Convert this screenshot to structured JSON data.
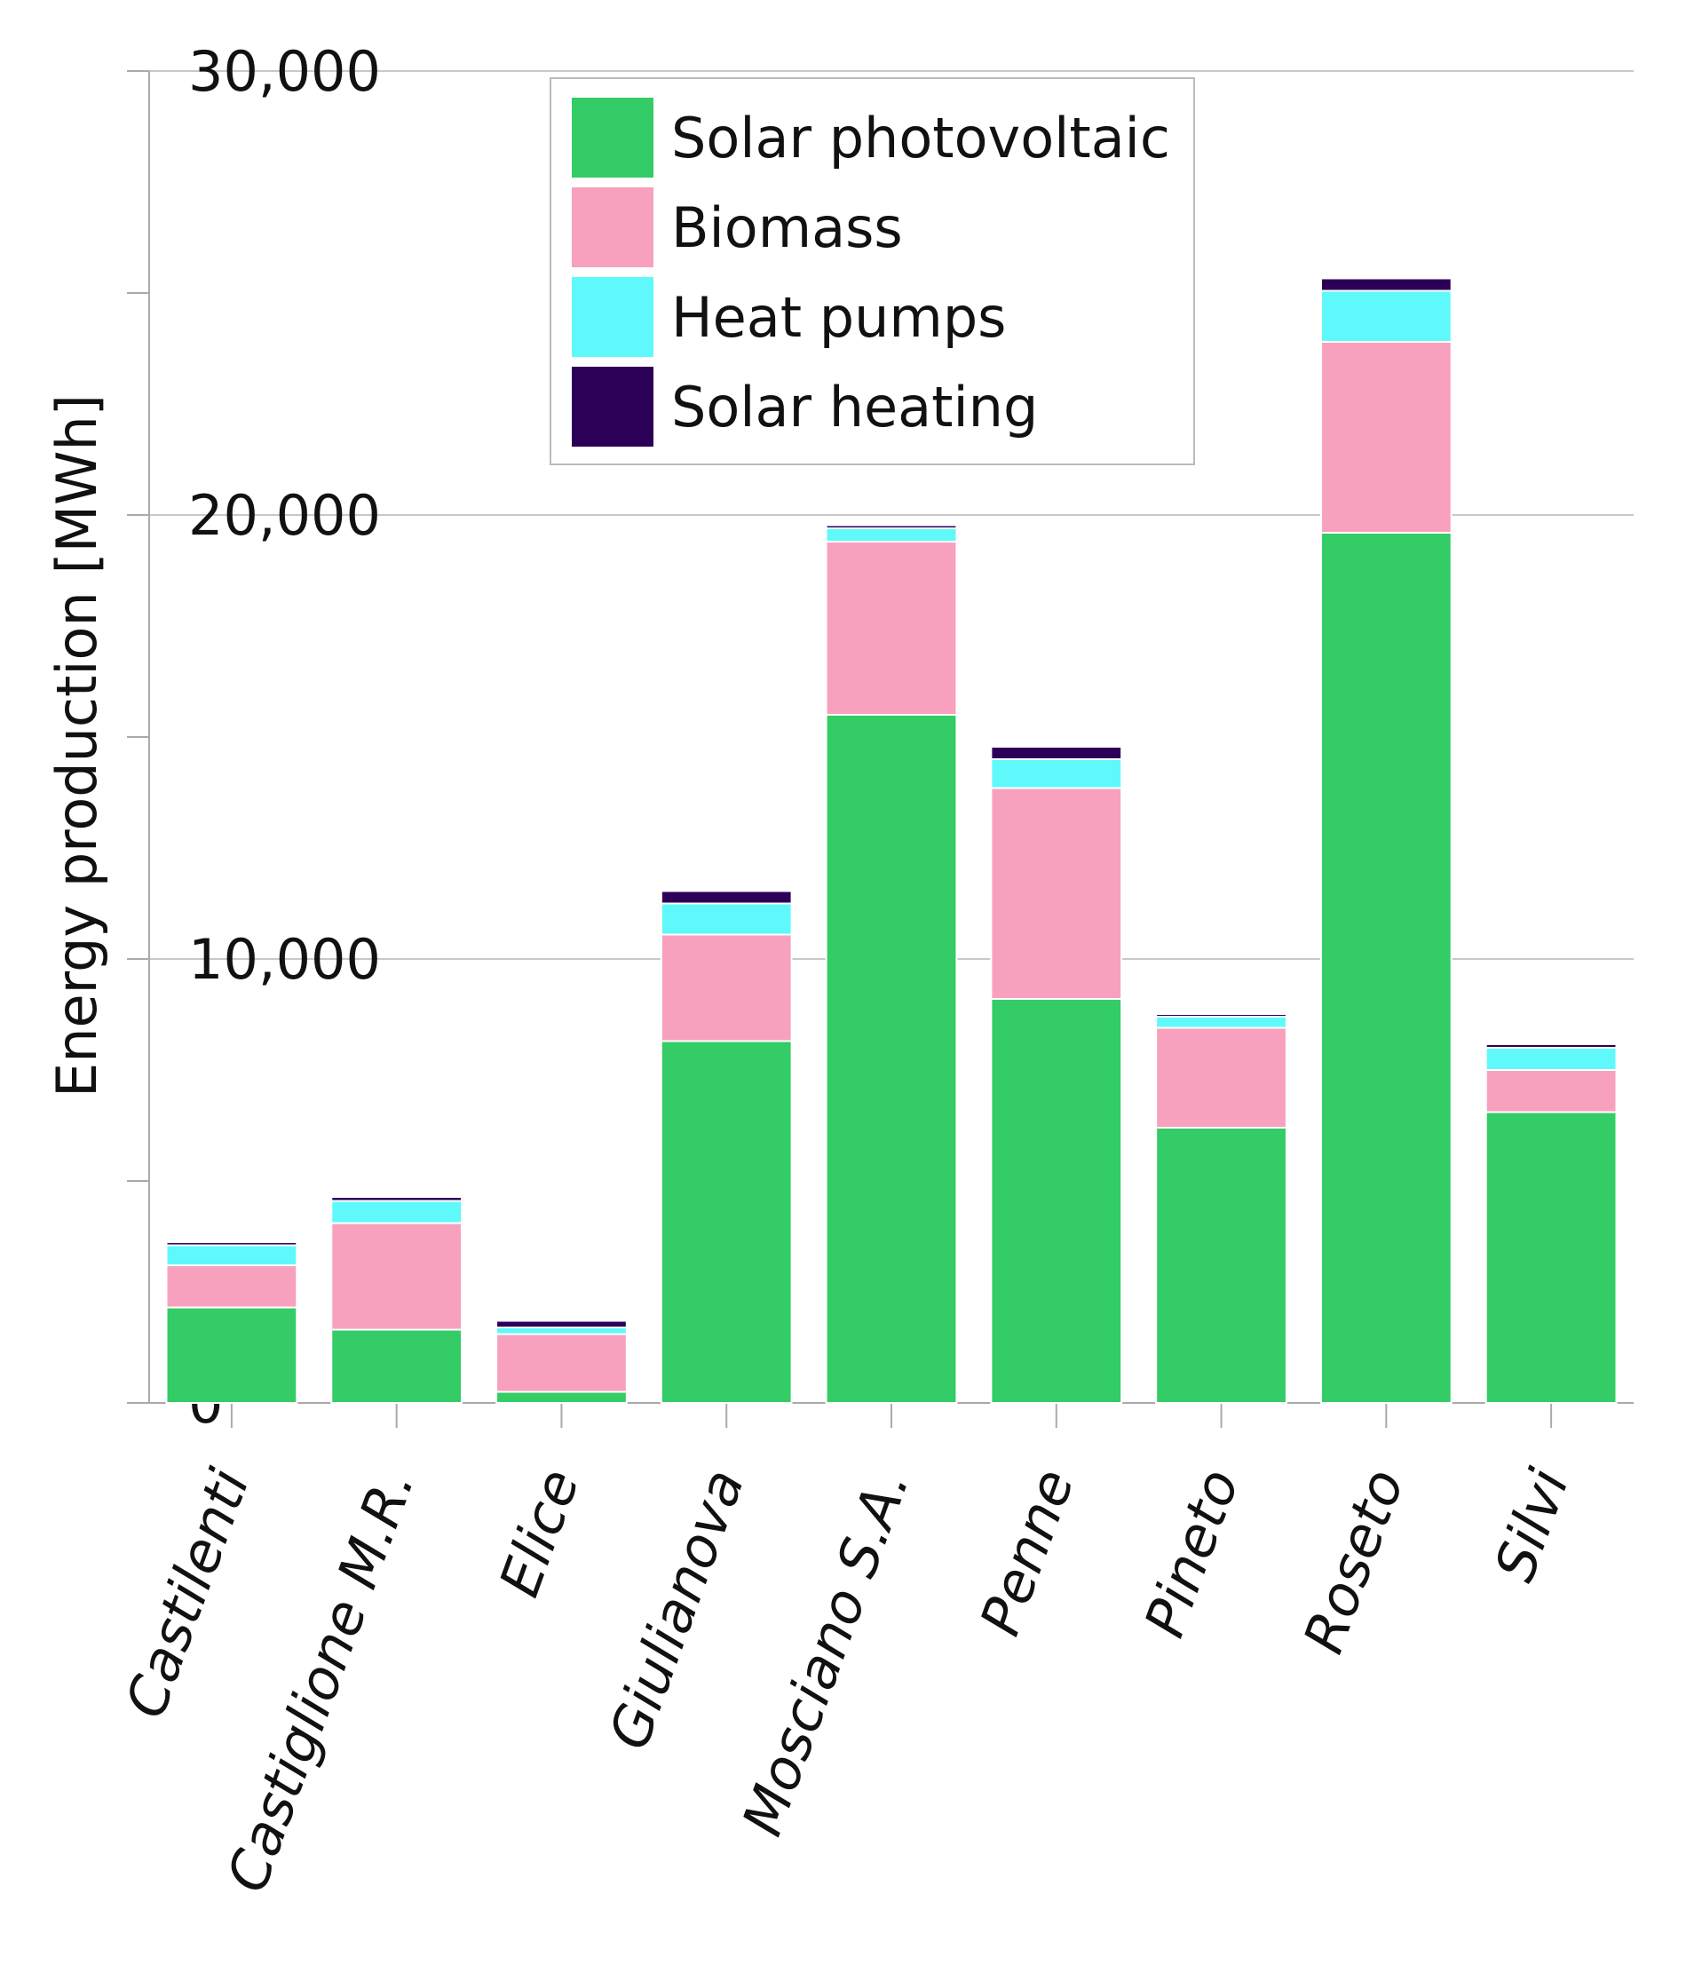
{
  "chart_data": {
    "type": "bar",
    "stacked": true,
    "title": "",
    "xlabel": "",
    "ylabel": "Energy production [MWh]",
    "ylim": [
      0,
      30000
    ],
    "yticks": [
      0,
      10000,
      20000,
      30000
    ],
    "ytick_labels": [
      "0",
      "10,000",
      "20,000",
      "30,000"
    ],
    "grid": true,
    "legend_position": "top-center",
    "categories": [
      "Castilenti",
      "Castiglione M.R.",
      "Elice",
      "Giulianova",
      "Mosciano S.A.",
      "Penne",
      "Pineto",
      "Roseto",
      "Silvi"
    ],
    "series": [
      {
        "name": "Solar photovoltaic",
        "color": "#33cc66",
        "values": [
          2150,
          1650,
          250,
          8150,
          15500,
          9100,
          6200,
          19600,
          6550
        ]
      },
      {
        "name": "Biomass",
        "color": "#f7a1bf",
        "values": [
          950,
          2400,
          1300,
          2400,
          3900,
          4750,
          2250,
          4300,
          950
        ]
      },
      {
        "name": "Heat pumps",
        "color": "#5ff9fb",
        "values": [
          450,
          500,
          150,
          700,
          300,
          650,
          250,
          1150,
          500
        ]
      },
      {
        "name": "Solar heating",
        "color": "#2d0058",
        "values": [
          70,
          90,
          150,
          280,
          70,
          280,
          60,
          280,
          80
        ]
      }
    ]
  }
}
